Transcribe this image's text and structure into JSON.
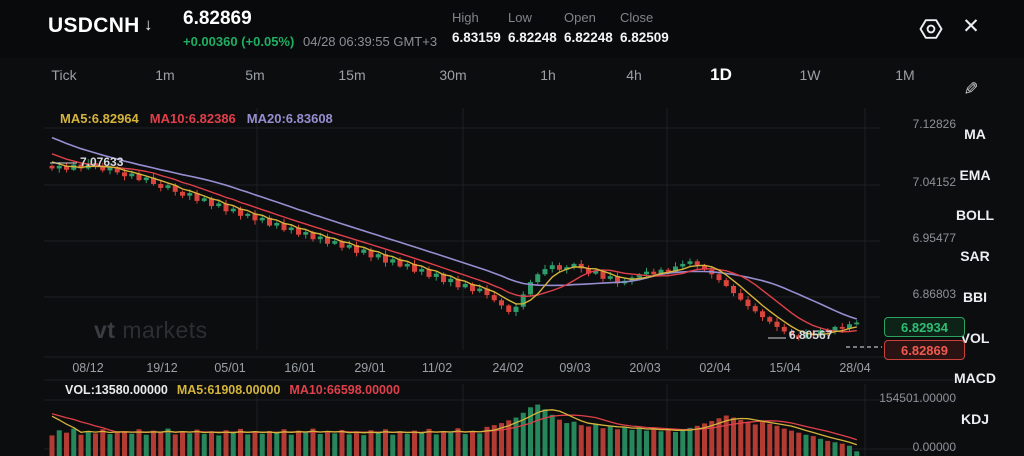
{
  "header": {
    "symbol": "USDCNH",
    "arrow": "↓",
    "price": "6.82869",
    "change": "+0.00360 (+0.05%)",
    "timestamp": "04/28 06:39:55 GMT+3",
    "stats": [
      {
        "label": "High",
        "value": "6.83159"
      },
      {
        "label": "Low",
        "value": "6.82248"
      },
      {
        "label": "Open",
        "value": "6.82248"
      },
      {
        "label": "Close",
        "value": "6.82509"
      }
    ],
    "close_icon": "✕"
  },
  "timeframes": {
    "items": [
      "Tick",
      "1m",
      "5m",
      "15m",
      "30m",
      "1h",
      "4h",
      "1D",
      "1W",
      "1M"
    ],
    "active": "1D"
  },
  "edit_icon": "✎",
  "indicators": {
    "items": [
      "MA",
      "EMA",
      "BOLL",
      "SAR",
      "BBI",
      "VOL",
      "MACD",
      "KDJ"
    ]
  },
  "ma_legend": [
    {
      "text": "MA5:6.82964",
      "color": "#d4b43c"
    },
    {
      "text": "MA10:6.82386",
      "color": "#e0404a"
    },
    {
      "text": "MA20:6.83608",
      "color": "#968ed0"
    }
  ],
  "volume_legend": [
    {
      "text": "VOL:13580.00000",
      "color": "#e8eaec"
    },
    {
      "text": "MA5:61908.00000",
      "color": "#d4b43c"
    },
    {
      "text": "MA10:66598.00000",
      "color": "#e0404a"
    }
  ],
  "price_tags": {
    "upper": "6.82934",
    "lower": "6.82869"
  },
  "watermark": {
    "bold": "vt",
    "light": "markets"
  },
  "chart_data": {
    "type": "candlestick+volume",
    "symbol": "USDCNH",
    "timeframe": "1D",
    "price_axis": {
      "labels": [
        "7.12826",
        "7.04152",
        "6.95477",
        "6.86803"
      ],
      "top": 7.12826,
      "bottom": 6.86803
    },
    "x_labels": [
      "08/12",
      "19/12",
      "05/01",
      "16/01",
      "29/01",
      "11/02",
      "24/02",
      "09/03",
      "20/03",
      "02/04",
      "15/04",
      "28/04"
    ],
    "annotations": {
      "open_marker": "7.07633",
      "low_marker": "6.80567"
    },
    "candles": {
      "first_open": 7.07,
      "closes": [
        7.066,
        7.07,
        7.064,
        7.072,
        7.066,
        7.074,
        7.07,
        7.063,
        7.068,
        7.06,
        7.054,
        7.058,
        7.048,
        7.052,
        7.042,
        7.036,
        7.04,
        7.03,
        7.024,
        7.028,
        7.016,
        7.02,
        7.008,
        7.012,
        7.0,
        7.004,
        6.993,
        6.996,
        6.986,
        6.99,
        6.978,
        6.982,
        6.971,
        6.975,
        6.964,
        6.968,
        6.957,
        6.961,
        6.95,
        6.954,
        6.944,
        6.948,
        6.936,
        6.941,
        6.929,
        6.934,
        6.921,
        6.926,
        6.915,
        6.919,
        6.907,
        6.911,
        6.899,
        6.904,
        6.891,
        6.896,
        6.883,
        6.888,
        6.877,
        6.881,
        6.871,
        6.863,
        6.855,
        6.845,
        6.853,
        6.872,
        6.891,
        6.903,
        6.911,
        6.917,
        6.91,
        6.914,
        6.919,
        6.912,
        6.904,
        6.908,
        6.896,
        6.9,
        6.889,
        6.893,
        6.898,
        6.903,
        6.907,
        6.903,
        6.91,
        6.907,
        6.915,
        6.919,
        6.923,
        6.917,
        6.91,
        6.903,
        6.894,
        6.885,
        6.874,
        6.864,
        6.854,
        6.846,
        6.837,
        6.83,
        6.822,
        6.815,
        6.809,
        6.80567,
        6.812,
        6.809,
        6.817,
        6.814,
        6.822,
        6.819,
        6.826,
        6.82869
      ]
    },
    "ma_periods": [
      5,
      10,
      20
    ],
    "volume": {
      "axis_max": 154501,
      "axis_min": 0,
      "max_label": "154501.00000",
      "min_label": "0.00000",
      "ma_periods": [
        5,
        10
      ],
      "values": [
        60000,
        75000,
        68000,
        80000,
        62000,
        73000,
        66000,
        78000,
        64000,
        70000,
        72000,
        65000,
        78000,
        62000,
        74000,
        68000,
        80000,
        63000,
        71000,
        66000,
        77000,
        64000,
        72000,
        60000,
        75000,
        68000,
        79000,
        63000,
        70000,
        65000,
        73000,
        67000,
        78000,
        62000,
        74000,
        69000,
        80000,
        64000,
        71000,
        66000,
        76000,
        63000,
        72000,
        61000,
        75000,
        68000,
        78000,
        62000,
        70000,
        65000,
        74000,
        67000,
        79000,
        63000,
        73000,
        68000,
        81000,
        64000,
        72000,
        66000,
        85000,
        90000,
        96000,
        104000,
        112000,
        126000,
        142000,
        150000,
        136000,
        120000,
        106000,
        96000,
        100000,
        90000,
        86000,
        92000,
        81000,
        88000,
        78000,
        84000,
        76000,
        82000,
        74000,
        80000,
        72000,
        78000,
        70000,
        76000,
        82000,
        88000,
        95000,
        102000,
        110000,
        118000,
        112000,
        105000,
        98000,
        92000,
        100000,
        94000,
        88000,
        80000,
        74000,
        68000,
        62000,
        58000,
        50000,
        44000,
        40000,
        36000,
        30000,
        13580
      ]
    },
    "colors": {
      "up": "#2f9e6a",
      "down": "#d9453d",
      "ma5": "#d4b43c",
      "ma10": "#e0404a",
      "ma20": "#968ed0",
      "vol_up": "#26875c",
      "vol_down": "#b23b34",
      "grid": "#1d2024",
      "dashed": "#9aa0a6"
    }
  }
}
